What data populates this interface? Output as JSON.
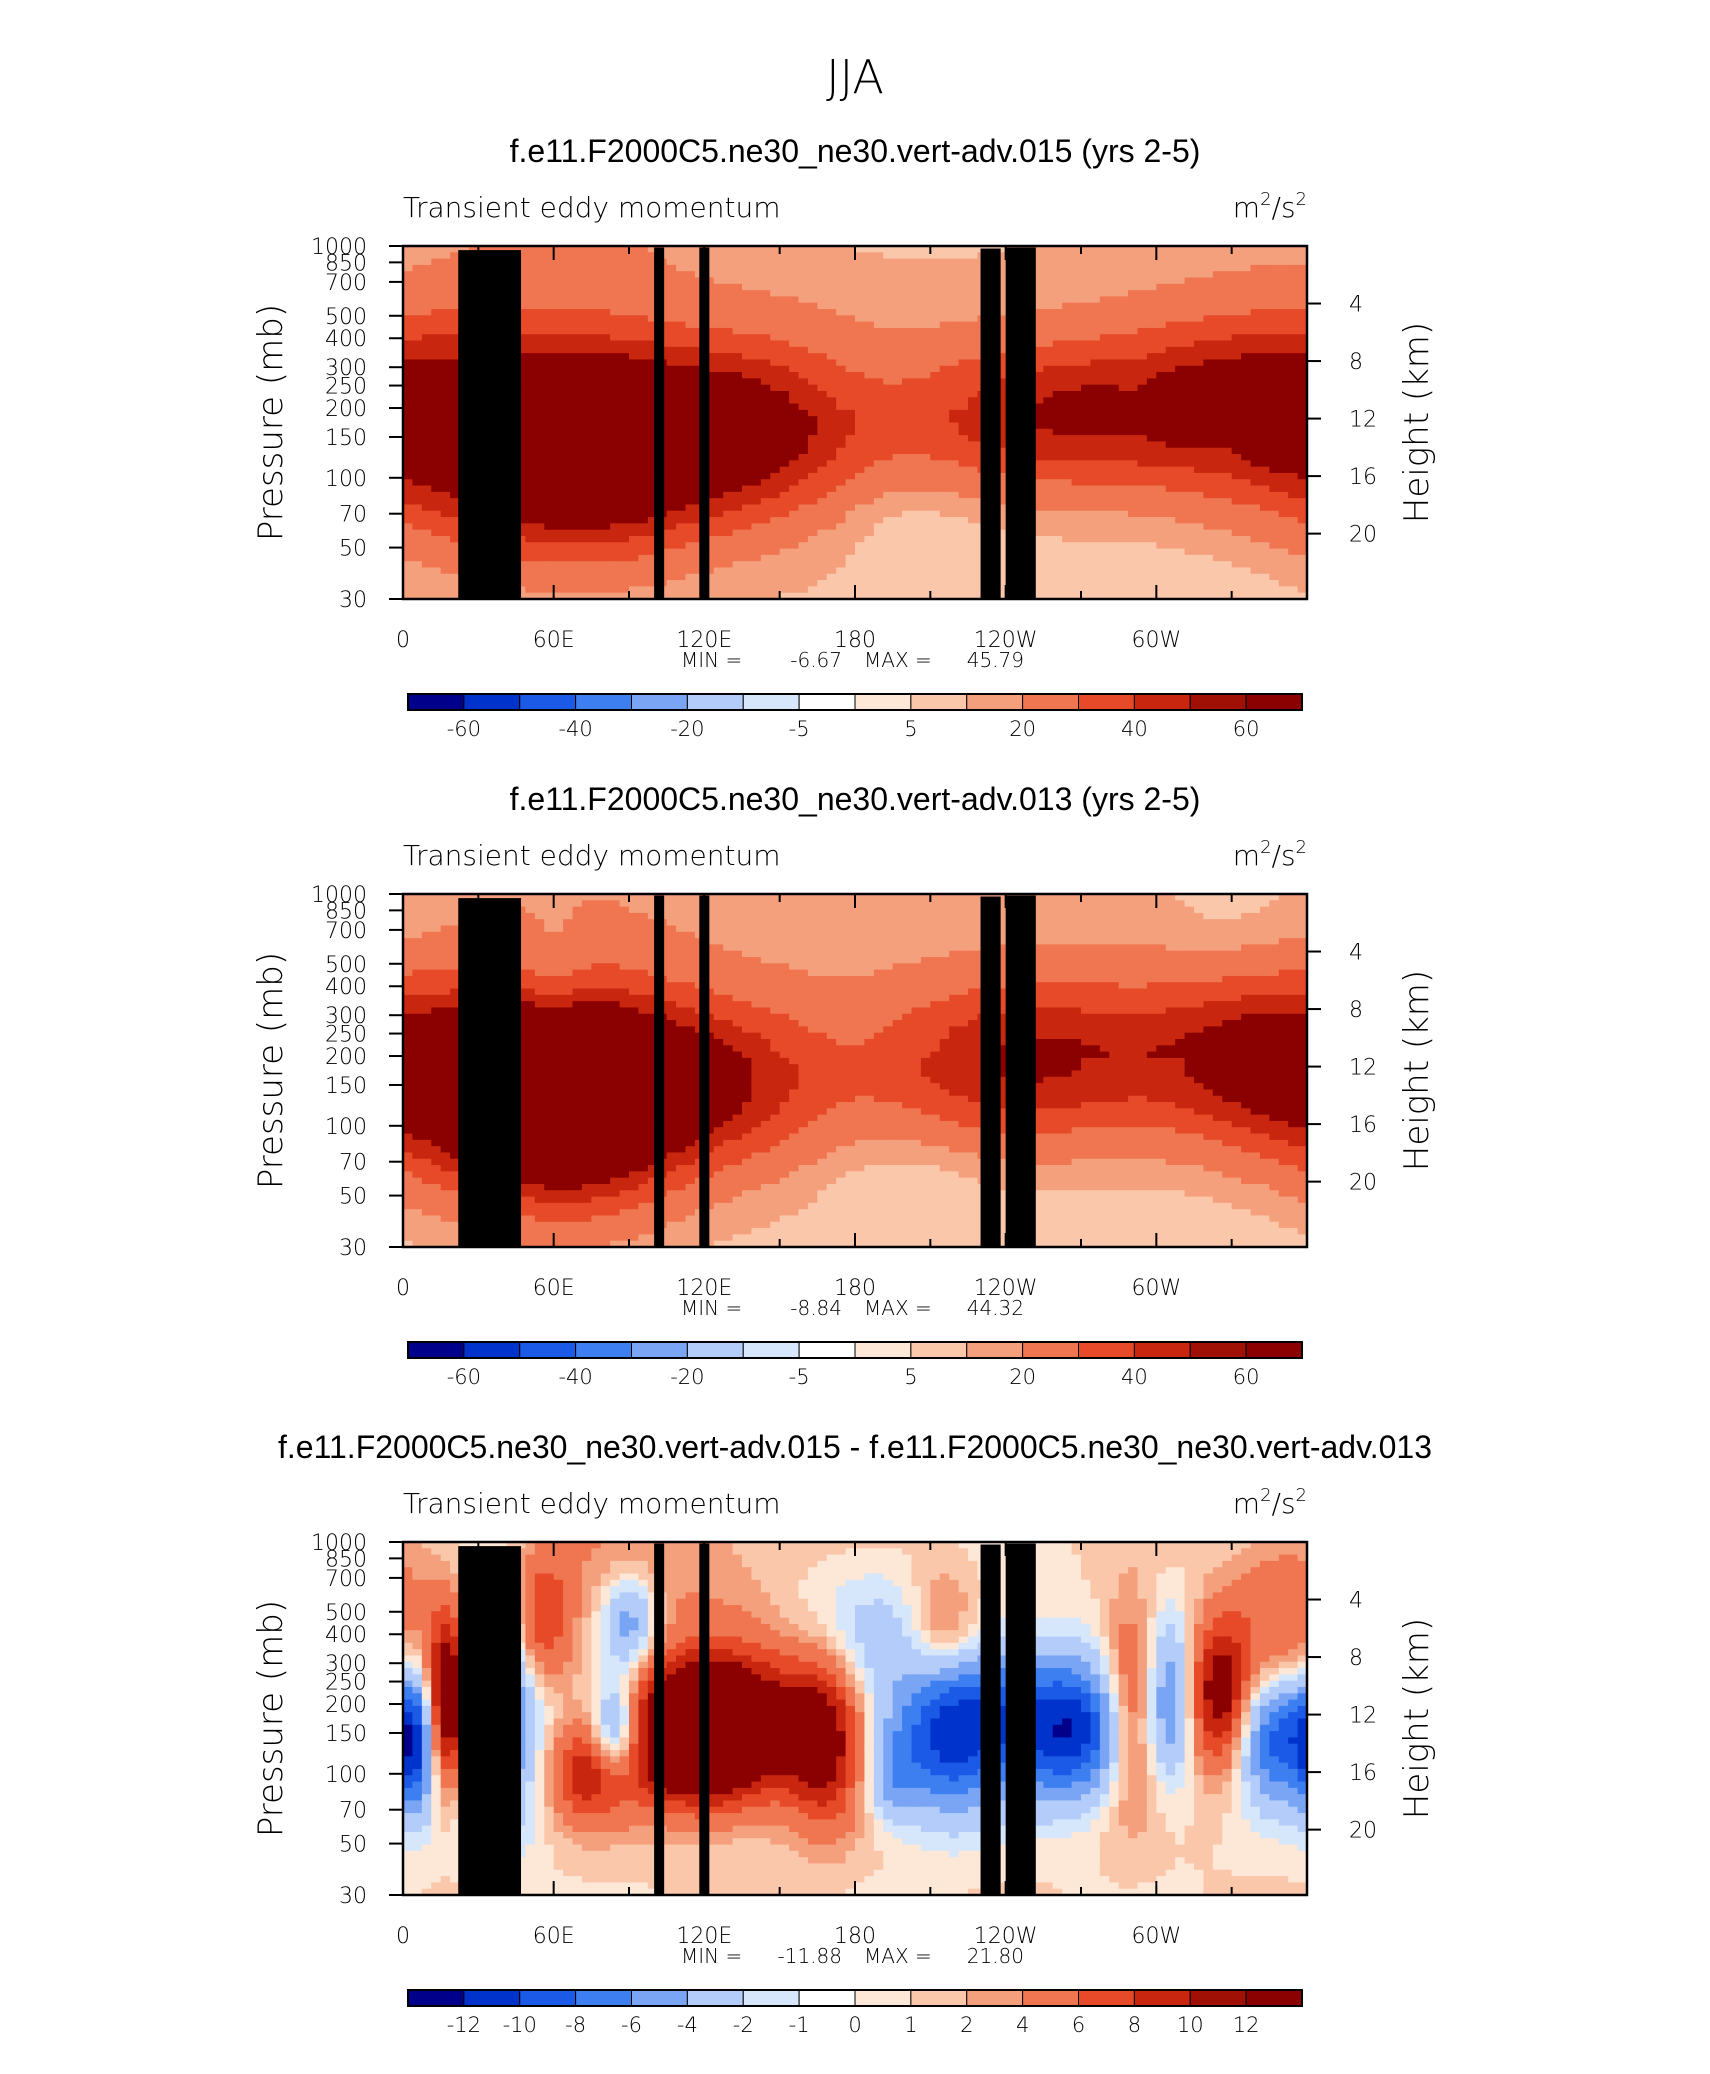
{
  "figure_title": "JJA",
  "chart_data": [
    {
      "type": "heatmap",
      "title": "f.e11.F2000C5.ne30_ne30.vert-adv.015 (yrs 2-5)",
      "left_string": "Transient eddy momentum",
      "units": {
        "base": "m",
        "exp1": "2",
        "sep": "/s",
        "exp2": "2"
      },
      "ylabel": "Pressure (mb)",
      "ylabel_right": "Height (km)",
      "x_ticks": [
        "0",
        "60E",
        "120E",
        "180",
        "120W",
        "60W"
      ],
      "x_range": [
        0,
        360
      ],
      "y_ticks": [
        "30",
        "50",
        "70",
        "100",
        "150",
        "200",
        "250",
        "300",
        "400",
        "500",
        "700",
        "850",
        "1000"
      ],
      "y_range_mb": [
        1000,
        30
      ],
      "right_ticks": [
        "20",
        "16",
        "12",
        "8",
        "4"
      ],
      "stats": {
        "min_label": "MIN =",
        "min": "-6.67",
        "max_label": "MAX =",
        "max": "45.79"
      },
      "colorbar_labels": [
        "-60",
        "-40",
        "-20",
        "-5",
        "5",
        "20",
        "40",
        "60"
      ],
      "colors": [
        "#00008b",
        "#0033cc",
        "#1a5ae6",
        "#3d7ef0",
        "#7aa5f5",
        "#b3ccf9",
        "#d6e6fb",
        "#fde7d6",
        "#fbc7ab",
        "#f5a07d",
        "#ef7650",
        "#e64a28",
        "#c8260e",
        "#8b0000"
      ],
      "features": [
        {
          "lon": 20,
          "p": 160,
          "v": 32,
          "dx": 45,
          "dy": 0.28
        },
        {
          "lon": 70,
          "p": 120,
          "v": 44,
          "dx": 35,
          "dy": 0.3
        },
        {
          "lon": 115,
          "p": 155,
          "v": 40,
          "dx": 40,
          "dy": 0.24
        },
        {
          "lon": 150,
          "p": 170,
          "v": 12,
          "dx": 25,
          "dy": 0.3
        },
        {
          "lon": 260,
          "p": 185,
          "v": 35,
          "dx": 45,
          "dy": 0.22
        },
        {
          "lon": 335,
          "p": 220,
          "v": 24,
          "dx": 35,
          "dy": 0.25
        },
        {
          "lon": 60,
          "p": 600,
          "v": 6,
          "dx": 60,
          "dy": 0.5
        },
        {
          "lon": 200,
          "p": 500,
          "v": 4,
          "dx": 50,
          "dy": 0.4
        },
        {
          "lon": 200,
          "p": 70,
          "v": -4,
          "dx": 25,
          "dy": 0.18
        },
        {
          "lon": 325,
          "p": 150,
          "v": -5,
          "dx": 8,
          "dy": 0.12
        },
        {
          "lon": 290,
          "p": 220,
          "v": -4,
          "dx": 6,
          "dy": 0.15
        }
      ]
    },
    {
      "type": "heatmap",
      "title": "f.e11.F2000C5.ne30_ne30.vert-adv.013 (yrs 2-5)",
      "left_string": "Transient eddy momentum",
      "units": {
        "base": "m",
        "exp1": "2",
        "sep": "/s",
        "exp2": "2"
      },
      "ylabel": "Pressure (mb)",
      "ylabel_right": "Height (km)",
      "x_ticks": [
        "0",
        "60E",
        "120E",
        "180",
        "120W",
        "60W"
      ],
      "x_range": [
        0,
        360
      ],
      "y_ticks": [
        "30",
        "50",
        "70",
        "100",
        "150",
        "200",
        "250",
        "300",
        "400",
        "500",
        "700",
        "850",
        "1000"
      ],
      "y_range_mb": [
        1000,
        30
      ],
      "right_ticks": [
        "20",
        "16",
        "12",
        "8",
        "4"
      ],
      "stats": {
        "min_label": "MIN =",
        "min": "-8.84",
        "max_label": "MAX =",
        "max": "44.32"
      },
      "colorbar_labels": [
        "-60",
        "-40",
        "-20",
        "-5",
        "5",
        "20",
        "40",
        "60"
      ],
      "colors": [
        "#00008b",
        "#0033cc",
        "#1a5ae6",
        "#3d7ef0",
        "#7aa5f5",
        "#b3ccf9",
        "#d6e6fb",
        "#fde7d6",
        "#fbc7ab",
        "#f5a07d",
        "#ef7650",
        "#e64a28",
        "#c8260e",
        "#8b0000"
      ],
      "features": [
        {
          "lon": 35,
          "p": 150,
          "v": 38,
          "dx": 40,
          "dy": 0.26
        },
        {
          "lon": 65,
          "p": 110,
          "v": 42,
          "dx": 30,
          "dy": 0.3
        },
        {
          "lon": 90,
          "p": 150,
          "v": 40,
          "dx": 40,
          "dy": 0.24
        },
        {
          "lon": 140,
          "p": 160,
          "v": 12,
          "dx": 25,
          "dy": 0.25
        },
        {
          "lon": 250,
          "p": 190,
          "v": 38,
          "dx": 45,
          "dy": 0.24
        },
        {
          "lon": 340,
          "p": 200,
          "v": 30,
          "dx": 30,
          "dy": 0.25
        },
        {
          "lon": 60,
          "p": 500,
          "v": 5,
          "dx": 60,
          "dy": 0.5
        },
        {
          "lon": 200,
          "p": 600,
          "v": 4,
          "dx": 60,
          "dy": 0.4
        },
        {
          "lon": 60,
          "p": 400,
          "v": -8,
          "dx": 8,
          "dy": 0.18
        },
        {
          "lon": 200,
          "p": 60,
          "v": -4,
          "dx": 25,
          "dy": 0.18
        },
        {
          "lon": 330,
          "p": 700,
          "v": -4,
          "dx": 20,
          "dy": 0.3
        }
      ]
    },
    {
      "type": "heatmap",
      "title": "f.e11.F2000C5.ne30_ne30.vert-adv.015 - f.e11.F2000C5.ne30_ne30.vert-adv.013",
      "left_string": "Transient eddy momentum",
      "units": {
        "base": "m",
        "exp1": "2",
        "sep": "/s",
        "exp2": "2"
      },
      "ylabel": "Pressure (mb)",
      "ylabel_right": "Height (km)",
      "x_ticks": [
        "0",
        "60E",
        "120E",
        "180",
        "120W",
        "60W"
      ],
      "x_range": [
        0,
        360
      ],
      "y_ticks": [
        "30",
        "50",
        "70",
        "100",
        "150",
        "200",
        "250",
        "300",
        "400",
        "500",
        "700",
        "850",
        "1000"
      ],
      "y_range_mb": [
        1000,
        30
      ],
      "right_ticks": [
        "20",
        "16",
        "12",
        "8",
        "4"
      ],
      "stats": {
        "min_label": "MIN =",
        "min": "-11.88",
        "max_label": "MAX =",
        "max": "21.80"
      },
      "colorbar_labels": [
        "-12",
        "-10",
        "-8",
        "-6",
        "-4",
        "-2",
        "-1",
        "0",
        "1",
        "2",
        "4",
        "6",
        "8",
        "10",
        "12"
      ],
      "colors": [
        "#00008b",
        "#0033cc",
        "#1a5ae6",
        "#3d7ef0",
        "#7aa5f5",
        "#b3ccf9",
        "#d6e6fb",
        "#fde7d6",
        "#fbc7ab",
        "#f5a07d",
        "#ef7650",
        "#e64a28",
        "#c8260e",
        "#8b0000"
      ],
      "features": [
        {
          "lon": 5,
          "p": 140,
          "v": -9,
          "dx": 6,
          "dy": 0.22
        },
        {
          "lon": 18,
          "p": 200,
          "v": 14,
          "dx": 6,
          "dy": 0.25
        },
        {
          "lon": 38,
          "p": 200,
          "v": -8,
          "dx": 12,
          "dy": 0.35
        },
        {
          "lon": 55,
          "p": 450,
          "v": 6,
          "dx": 8,
          "dy": 0.2
        },
        {
          "lon": 75,
          "p": 100,
          "v": 7,
          "dx": 12,
          "dy": 0.15
        },
        {
          "lon": 85,
          "p": 150,
          "v": -9,
          "dx": 7,
          "dy": 0.15
        },
        {
          "lon": 118,
          "p": 150,
          "v": 20,
          "dx": 18,
          "dy": 0.2
        },
        {
          "lon": 150,
          "p": 170,
          "v": 6,
          "dx": 18,
          "dy": 0.25
        },
        {
          "lon": 168,
          "p": 140,
          "v": 8,
          "dx": 10,
          "dy": 0.25
        },
        {
          "lon": 195,
          "p": 100,
          "v": -5,
          "dx": 8,
          "dy": 0.15
        },
        {
          "lon": 215,
          "p": 150,
          "v": -7,
          "dx": 12,
          "dy": 0.25
        },
        {
          "lon": 240,
          "p": 170,
          "v": -9,
          "dx": 22,
          "dy": 0.22
        },
        {
          "lon": 270,
          "p": 150,
          "v": -8,
          "dx": 14,
          "dy": 0.2
        },
        {
          "lon": 290,
          "p": 200,
          "v": 6,
          "dx": 8,
          "dy": 0.3
        },
        {
          "lon": 305,
          "p": 200,
          "v": -6,
          "dx": 7,
          "dy": 0.25
        },
        {
          "lon": 325,
          "p": 220,
          "v": 10,
          "dx": 8,
          "dy": 0.22
        },
        {
          "lon": 350,
          "p": 150,
          "v": -10,
          "dx": 12,
          "dy": 0.2
        },
        {
          "lon": 90,
          "p": 450,
          "v": -6,
          "dx": 8,
          "dy": 0.15
        },
        {
          "lon": 215,
          "p": 380,
          "v": 5,
          "dx": 10,
          "dy": 0.2
        },
        {
          "lon": 180,
          "p": 380,
          "v": -3,
          "dx": 30,
          "dy": 0.25
        },
        {
          "lon": 100,
          "p": 700,
          "v": 2,
          "dx": 50,
          "dy": 0.4
        },
        {
          "lon": 350,
          "p": 400,
          "v": 4,
          "dx": 15,
          "dy": 0.3
        }
      ]
    }
  ]
}
